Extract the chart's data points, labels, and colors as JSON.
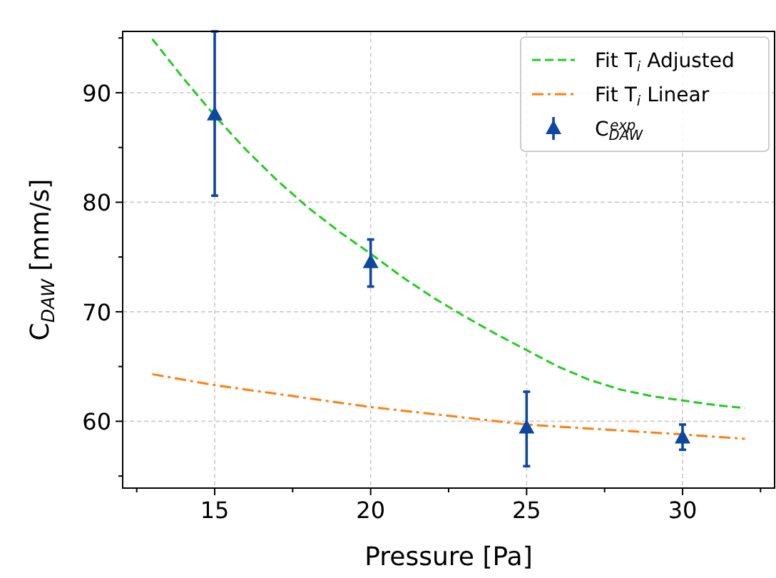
{
  "chart_data": {
    "type": "scatter",
    "xlabel": "Pressure [Pa]",
    "ylabel": "C$_{DAW}$ [mm/s]",
    "xlim": [
      12.05,
      32.95
    ],
    "ylim": [
      53.9,
      95.6
    ],
    "xticks": [
      {
        "value": 12.5,
        "label": null
      },
      15,
      {
        "value": 17.5,
        "label": null
      },
      20,
      {
        "value": 22.5,
        "label": null
      },
      25,
      {
        "value": 27.5,
        "label": null
      },
      30,
      {
        "value": 32.5,
        "label": null
      }
    ],
    "yticks": [
      {
        "value": 55,
        "label": null
      },
      60,
      {
        "value": 65,
        "label": null
      },
      70,
      {
        "value": 75,
        "label": null
      },
      80,
      {
        "value": 85,
        "label": null
      },
      90,
      {
        "value": 95,
        "label": null
      }
    ],
    "grid": true,
    "legend": "top right",
    "series": [
      {
        "name": "Fit T$_{i}$ Adjusted",
        "type": "line",
        "color": "#22cc22",
        "line_style": "dashed",
        "marker": "none",
        "x": [
          13,
          14,
          15,
          16,
          17,
          18,
          19,
          20,
          21,
          22,
          23,
          24,
          25,
          26,
          27,
          28,
          29,
          30,
          31,
          32
        ],
        "values": [
          94.9,
          91.3,
          87.9,
          84.8,
          82.0,
          79.5,
          77.3,
          75.3,
          73.2,
          71.3,
          69.6,
          68.0,
          66.5,
          65.0,
          63.8,
          62.9,
          62.3,
          61.9,
          61.5,
          61.2
        ]
      },
      {
        "name": "Fit T$_{i}$ Linear",
        "type": "line",
        "color": "#ff7f0e",
        "line_style": "dashdot",
        "marker": "none",
        "x": [
          13,
          15,
          20,
          25,
          30,
          32
        ],
        "values": [
          64.3,
          63.3,
          61.3,
          59.7,
          58.8,
          58.4
        ]
      },
      {
        "name": "C$_{DAW}$$^{exp}$",
        "color": "#0d47a1",
        "marker": "triangle",
        "x": [
          15,
          20,
          25,
          30
        ],
        "values": [
          88.0,
          74.5,
          59.4,
          58.5
        ],
        "errors": [
          [
            80.6,
            95.6
          ],
          [
            72.3,
            76.6
          ],
          [
            55.9,
            62.7
          ],
          [
            57.4,
            59.7
          ]
        ]
      }
    ]
  }
}
